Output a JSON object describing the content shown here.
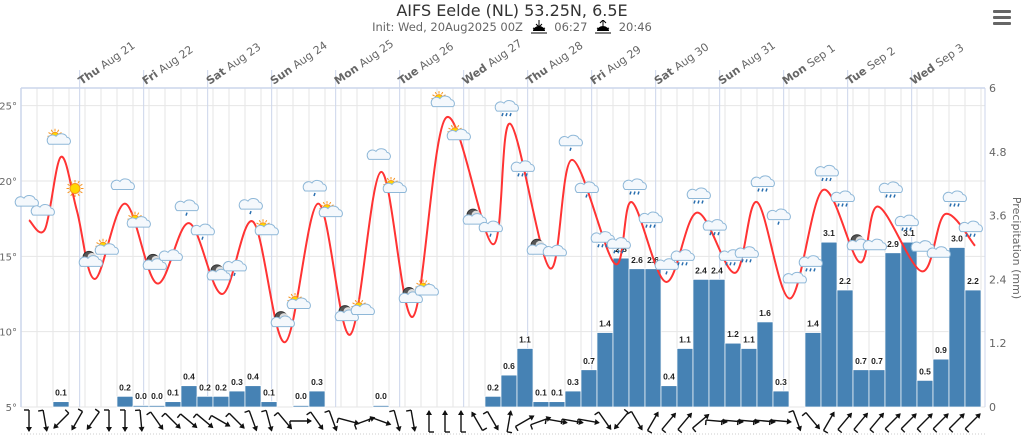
{
  "header": {
    "title": "AIFS Eelde (NL) 53.25N, 6.5E",
    "init": "Init: Wed, 20Aug2025 00Z",
    "sunrise": "06:27",
    "sunset": "20:46"
  },
  "chart_data": {
    "type": "meteogram",
    "title": "AIFS Eelde (NL) 53.25N, 6.5E",
    "ylabel_right": "Precipitation (mm)",
    "temp_axis": {
      "ticks": [
        5,
        10,
        15,
        20,
        25
      ],
      "suffix": "°",
      "range": [
        5,
        26.17
      ]
    },
    "precip_axis": {
      "ticks": [
        "0",
        "1.2",
        "2.4",
        "3.6",
        "4.8",
        "6"
      ],
      "range": [
        0,
        6
      ]
    },
    "step_hours": 6,
    "days": [
      [
        "Thu",
        "Aug 21"
      ],
      [
        "Fri",
        "Aug 22"
      ],
      [
        "Sat",
        "Aug 23"
      ],
      [
        "Sun",
        "Aug 24"
      ],
      [
        "Mon",
        "Aug 25"
      ],
      [
        "Tue",
        "Aug 26"
      ],
      [
        "Wed",
        "Aug 27"
      ],
      [
        "Thu",
        "Aug 28"
      ],
      [
        "Fri",
        "Aug 29"
      ],
      [
        "Sat",
        "Aug 30"
      ],
      [
        "Sun",
        "Aug 31"
      ],
      [
        "Mon",
        "Sep 1"
      ],
      [
        "Tue",
        "Sep 2"
      ],
      [
        "Wed",
        "Sep 3"
      ]
    ],
    "precip": [
      null,
      null,
      0.1,
      null,
      null,
      null,
      0.2,
      0.0,
      0.0,
      0.1,
      0.4,
      0.2,
      0.2,
      0.3,
      0.4,
      0.1,
      null,
      0.0,
      0.3,
      null,
      null,
      null,
      0.0,
      null,
      null,
      null,
      null,
      null,
      null,
      0.2,
      0.6,
      1.1,
      0.1,
      0.1,
      0.3,
      0.7,
      1.4,
      2.8,
      2.6,
      2.6,
      0.4,
      1.1,
      2.4,
      2.4,
      1.2,
      1.1,
      1.6,
      0.3,
      null,
      1.4,
      3.1,
      2.2,
      0.7,
      0.7,
      2.9,
      3.1,
      0.5,
      0.9,
      3.0,
      2.2
    ],
    "precip_labels": [
      null,
      null,
      "0.1",
      null,
      null,
      null,
      "0.2",
      "0.0",
      "0.0",
      "0.1",
      "0.4",
      "0.2",
      "0.2",
      "0.3",
      "0.4",
      "0.1",
      null,
      "0.0",
      "0.3",
      null,
      null,
      null,
      "0.0",
      null,
      null,
      null,
      null,
      null,
      null,
      "0.2",
      "0.6",
      "1.1",
      "0.1",
      "0.1",
      "0.3",
      "0.7",
      "1.4",
      "2.8",
      "2.6",
      "2.6",
      "0.4",
      "1.1",
      "2.4",
      "2.4",
      "1.2",
      "1.1",
      "1.6",
      "0.3",
      null,
      "1.4",
      "3.1",
      "2.2",
      "0.7",
      "0.7",
      "2.9",
      "3.1",
      "0.5",
      "0.9",
      "3.0",
      "2.2"
    ],
    "temperature": [
      [
        3,
        17.4
      ],
      [
        9,
        16.8
      ],
      [
        15,
        21.6
      ],
      [
        21,
        18.0
      ],
      [
        27.75,
        13.5
      ],
      [
        39,
        18.5
      ],
      [
        51,
        13.2
      ],
      [
        63,
        17.2
      ],
      [
        75.4,
        12.5
      ],
      [
        87,
        17.3
      ],
      [
        99,
        9.3
      ],
      [
        111.4,
        18.5
      ],
      [
        123.4,
        9.8
      ],
      [
        135,
        20.6
      ],
      [
        147,
        11.0
      ],
      [
        159.4,
        24.2
      ],
      [
        177,
        15.8
      ],
      [
        183.4,
        23.8
      ],
      [
        198.4,
        14.2
      ],
      [
        206.6,
        21.4
      ],
      [
        222.75,
        14.5
      ],
      [
        229,
        18.6
      ],
      [
        241.9,
        13.3
      ],
      [
        253.5,
        17.9
      ],
      [
        267.75,
        13.9
      ],
      [
        276,
        18.6
      ],
      [
        288.4,
        12.2
      ],
      [
        300.75,
        19.4
      ],
      [
        314.6,
        14.6
      ],
      [
        321.4,
        18.3
      ],
      [
        337.9,
        14.0
      ],
      [
        346.5,
        17.8
      ],
      [
        357.75,
        15.7
      ]
    ],
    "symbols": [
      "cloud",
      "cloud",
      "sun-cloud",
      "sun",
      "moon-cloud",
      "sun-cloud",
      "cloud",
      "sun-cloud",
      "moon-cloud",
      "cloud",
      "light-rain",
      "light-rain",
      "moon-cloud",
      "light-rain",
      "light-rain",
      "sun-cloud",
      "moon-cloud",
      "sun-cloud",
      "light-rain",
      "sun-cloud",
      "moon-cloud",
      "sun-cloud",
      "cloud",
      "sun-cloud",
      "moon-cloud",
      "sun-cloud",
      "sun-cloud",
      "sun-cloud",
      "moon-cloud",
      "light-rain",
      "rain",
      "rain",
      "moon-cloud",
      "cloud",
      "light-rain",
      "light-rain",
      "rain",
      "rain",
      "rain",
      "rain",
      "light-rain",
      "rain",
      "rain",
      "rain",
      "rain",
      "rain",
      "rain",
      "light-rain",
      "cloud",
      "rain",
      "rain",
      "rain",
      "moon-cloud",
      "cloud",
      "rain",
      "rain",
      "cloud",
      "cloud",
      "rain",
      "rain"
    ],
    "symbol_temps": [
      18.6,
      18.0,
      22.7,
      19.5,
      14.6,
      15.4,
      19.7,
      17.2,
      14.4,
      15.0,
      18.3,
      16.7,
      13.7,
      14.3,
      18.4,
      16.7,
      10.6,
      11.8,
      19.6,
      17.9,
      11.0,
      11.4,
      21.7,
      19.5,
      12.2,
      12.7,
      25.2,
      23.0,
      17.4,
      16.9,
      24.9,
      20.9,
      15.4,
      15.3,
      22.6,
      19.5,
      16.2,
      15.8,
      19.7,
      17.5,
      14.4,
      15.0,
      19.1,
      17.0,
      15.0,
      15.2,
      19.9,
      17.7,
      13.5,
      14.6,
      20.6,
      18.9,
      15.7,
      15.7,
      19.5,
      17.3,
      15.6,
      15.2,
      18.9,
      16.9
    ],
    "wind_dir_deg": [
      180,
      170,
      225,
      210,
      215,
      180,
      180,
      175,
      145,
      135,
      130,
      130,
      120,
      135,
      160,
      165,
      140,
      90,
      145,
      160,
      105,
      70,
      110,
      165,
      170,
      0,
      0,
      0,
      330,
      150,
      10,
      60,
      70,
      100,
      100,
      100,
      145,
      220,
      150,
      30,
      40,
      40,
      50,
      95,
      95,
      95,
      95,
      95,
      160,
      140,
      30,
      40,
      40,
      40,
      45,
      45,
      45,
      45,
      45,
      45
    ],
    "colors": {
      "temp": "#ff3333",
      "precip": "#4682b4",
      "grid": "#e6e6e6",
      "dayline": "#ccd6eb"
    }
  }
}
